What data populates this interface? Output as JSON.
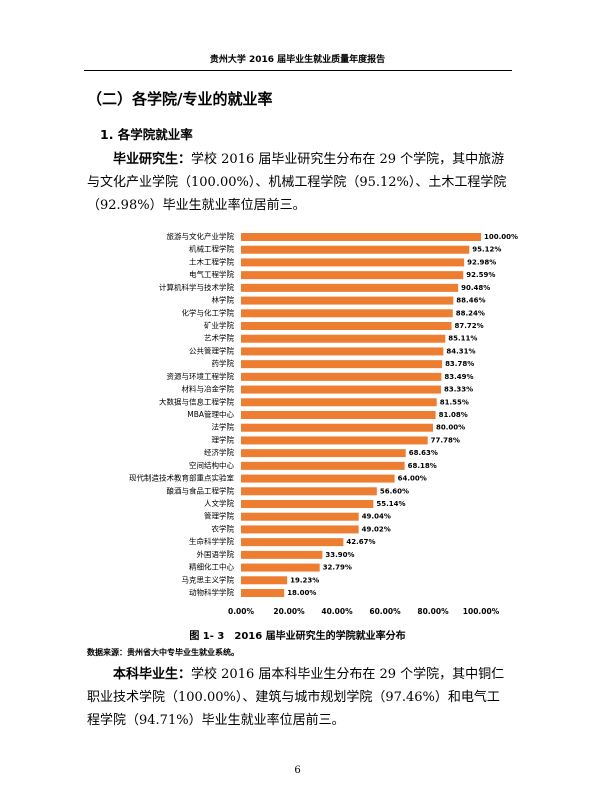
{
  "header": {
    "title": "贵州大学 2016 届毕业生就业质量年度报告"
  },
  "section": {
    "heading": "（二）各学院/专业的就业率",
    "subheading": "1. 各学院就业率"
  },
  "paragraph1": {
    "lead": "毕业研究生：",
    "text": "学校 2016 届毕业研究生分布在 29 个学院，其中旅游与文化产业学院（100.00%）、机械工程学院（95.12%）、土木工程学院（92.98%）毕业生就业率位居前三。"
  },
  "chart_data": {
    "type": "hbar",
    "color": "#ED7D31",
    "categories": [
      "旅游与文化产业学院",
      "机械工程学院",
      "土木工程学院",
      "电气工程学院",
      "计算机科学与技术学院",
      "林学院",
      "化学与化工学院",
      "矿业学院",
      "艺术学院",
      "公共管理学院",
      "药学院",
      "资源与环境工程学院",
      "材料与冶金学院",
      "大数据与信息工程学院",
      "MBA管理中心",
      "法学院",
      "理学院",
      "经济学院",
      "空间结构中心",
      "现代制造技术教育部重点实验室",
      "酿酒与食品工程学院",
      "人文学院",
      "管理学院",
      "农学院",
      "生命科学学院",
      "外国语学院",
      "精细化工中心",
      "马克思主义学院",
      "动物科学学院"
    ],
    "values": [
      100,
      95.12,
      92.98,
      92.59,
      90.48,
      88.46,
      88.24,
      87.72,
      85.11,
      84.31,
      83.78,
      83.49,
      83.33,
      81.55,
      81.08,
      80,
      77.78,
      68.63,
      68.18,
      64,
      56.6,
      55.14,
      49.04,
      49.02,
      42.67,
      33.9,
      32.79,
      19.23,
      18
    ],
    "value_labels": [
      "100.00%",
      "95.12%",
      "92.98%",
      "92.59%",
      "90.48%",
      "88.46%",
      "88.24%",
      "87.72%",
      "85.11%",
      "84.31%",
      "83.78%",
      "83.49%",
      "83.33%",
      "81.55%",
      "81.08%",
      "80.00%",
      "77.78%",
      "68.63%",
      "68.18%",
      "64.00%",
      "56.60%",
      "55.14%",
      "49.04%",
      "49.02%",
      "42.67%",
      "33.90%",
      "32.79%",
      "19.23%",
      "18.00%"
    ],
    "xlim": [
      0,
      100
    ],
    "xticks": [
      {
        "value": 0,
        "label": "0.00%"
      },
      {
        "value": 20,
        "label": "20.00%"
      },
      {
        "value": 40,
        "label": "40.00%"
      },
      {
        "value": 60,
        "label": "60.00%"
      },
      {
        "value": 80,
        "label": "80.00%"
      },
      {
        "value": 100,
        "label": "100.00%"
      }
    ]
  },
  "figure": {
    "caption": "图 1- 3　2016 届毕业研究生的学院就业率分布",
    "source": "数据来源：贵州省大中专毕业生就业系统。"
  },
  "paragraph2": {
    "lead": "本科毕业生：",
    "text": "学校 2016 届本科毕业生分布在 29 个学院，其中铜仁职业技术学院（100.00%）、建筑与城市规划学院（97.46%）和电气工程学院（94.71%）毕业生就业率位居前三。"
  },
  "footer": {
    "page": "6"
  }
}
